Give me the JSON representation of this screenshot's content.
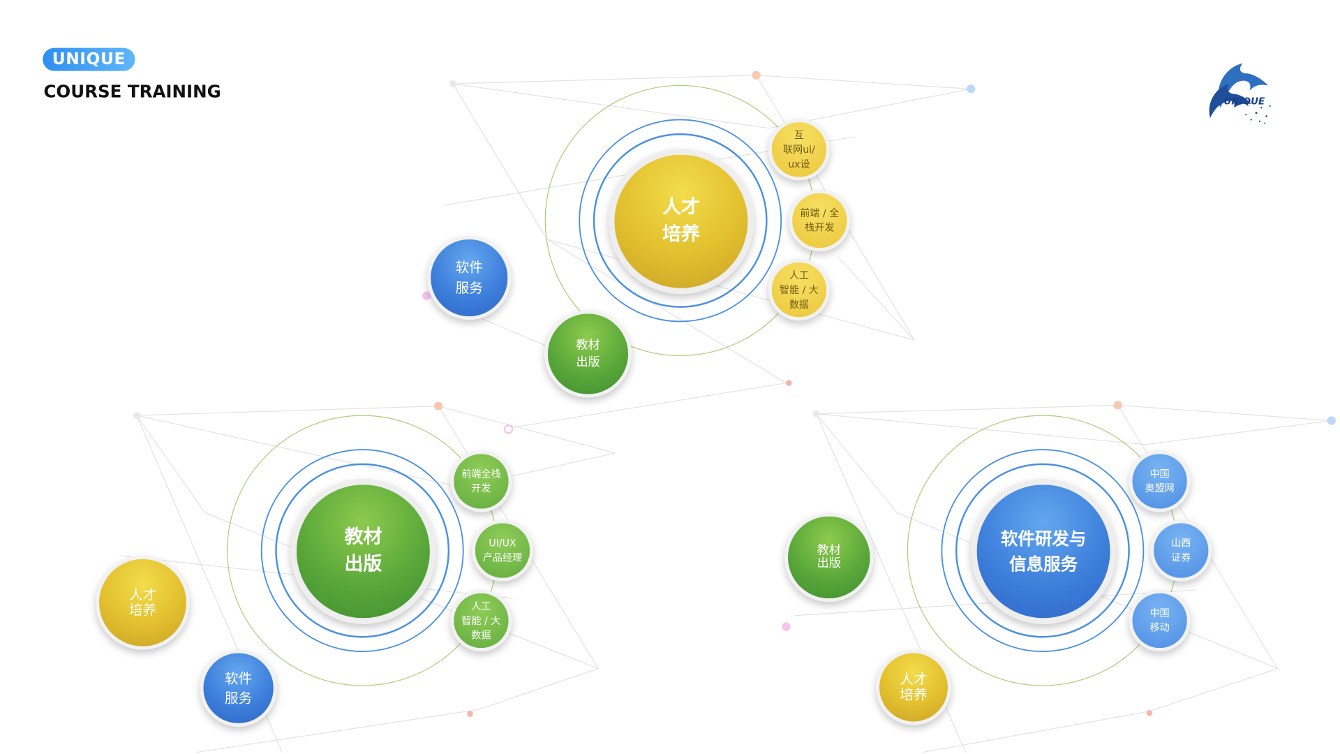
{
  "header": {
    "badge_label": "UNIQUE",
    "subtitle": "COURSE TRAINING"
  },
  "logo": {
    "text": "UNIQUE"
  },
  "colors": {
    "yellow": "#e2bf2e",
    "green": "#5aa83a",
    "blue": "#3d7fdb",
    "ring_blue": "#4a90e2",
    "ring_green": "#8cc04a"
  },
  "clusters": {
    "top": {
      "center": "人才\n培养",
      "satellites": [
        "互\n联网ui/\nux设",
        "前端 / 全\n栈开发",
        "人工\n智能 / 大\n数据"
      ],
      "peers": [
        "软件\n服务",
        "教材\n出版"
      ]
    },
    "left": {
      "center": "教材\n出版",
      "satellites": [
        "前端全栈\n开发",
        "UI/UX\n产品经理",
        "人工\n智能 / 大\n数据"
      ],
      "peers": [
        "人才\n培养",
        "软件\n服务"
      ]
    },
    "right": {
      "center": "软件研发与\n信息服务",
      "satellites": [
        "中国\n奥盟网",
        "山西\n证券",
        "中国\n移动"
      ],
      "peers": [
        "教材\n出版",
        "人才\n培养"
      ]
    }
  }
}
